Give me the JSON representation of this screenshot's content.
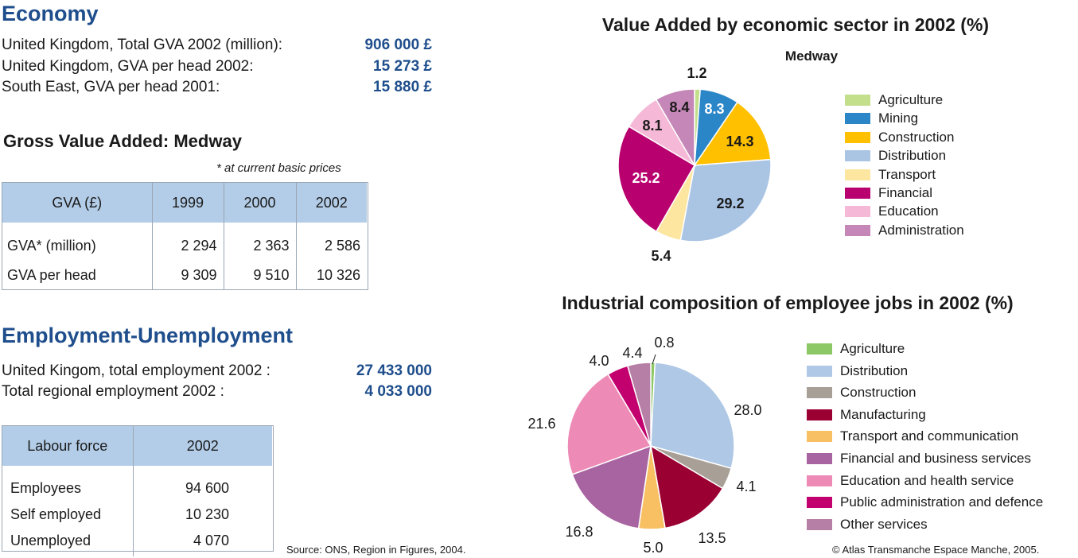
{
  "economy": {
    "title": "Economy",
    "rows": [
      {
        "label": "United Kingdom, Total GVA 2002 (million):",
        "value": "906 000 £"
      },
      {
        "label": "United Kingdom, GVA per head 2002:",
        "value": "15 273 £"
      },
      {
        "label": "South East, GVA per head 2001:",
        "value": "15 880 £"
      }
    ]
  },
  "gva": {
    "title": "Gross Value Added: Medway",
    "note": "* at current basic prices",
    "headers": [
      "GVA (£)",
      "1999",
      "2000",
      "2002"
    ],
    "rows": [
      [
        "GVA* (million)",
        "2 294",
        "2 363",
        "2 586"
      ],
      [
        "GVA per head",
        "9 309",
        "9 510",
        "10 326"
      ]
    ]
  },
  "employment": {
    "title": "Employment-Unemployment",
    "rows": [
      {
        "label": "United Kingom, total employment 2002 :",
        "value": "27 433 000"
      },
      {
        "label": "Total regional employment 2002 :",
        "value": "4 033 000"
      }
    ]
  },
  "labour": {
    "headers": [
      "Labour force",
      "2002"
    ],
    "rows": [
      [
        "Employees",
        "94 600"
      ],
      [
        "Self employed",
        "10 230"
      ],
      [
        "Unemployed",
        "4 070"
      ]
    ]
  },
  "source": "Source: ONS, Region in Figures, 2004.",
  "copyright": "© Atlas Transmanche Espace Manche, 2005.",
  "chart_data": [
    {
      "type": "pie",
      "title": "Value Added by economic sector in 2002 (%)",
      "subtitle": "Medway",
      "categories": [
        "Agriculture",
        "Mining",
        "Construction",
        "Distribution",
        "Transport",
        "Financial",
        "Education",
        "Administration"
      ],
      "values": [
        1.2,
        8.3,
        14.3,
        29.2,
        5.4,
        25.2,
        8.1,
        8.4
      ],
      "labels": [
        "1.2",
        "8.3",
        "14.3",
        "29.2",
        "5.4",
        "25.2",
        "8.1",
        "8.4"
      ],
      "colors": [
        "#c3df8b",
        "#2b86c8",
        "#ffc000",
        "#aac4e4",
        "#fde6a0",
        "#b8006e",
        "#f5b8d6",
        "#c586b8"
      ],
      "legend": "right"
    },
    {
      "type": "pie",
      "title": "Industrial composition of employee jobs in 2002 (%)",
      "categories": [
        "Agriculture",
        "Distribution",
        "Construction",
        "Manufacturing",
        "Transport and communication",
        "Financial and business services",
        "Education and health service",
        "Public administration and defence",
        "Other services"
      ],
      "values": [
        0.8,
        28.0,
        4.1,
        13.5,
        5.0,
        16.8,
        21.6,
        4.0,
        4.4
      ],
      "labels": [
        "0.8",
        "28.0",
        "4.1",
        "13.5",
        "5.0",
        "16.8",
        "21.6",
        "4.0",
        "4.4"
      ],
      "colors": [
        "#8cc866",
        "#aec8e6",
        "#a8a096",
        "#9b0033",
        "#f8c063",
        "#a864a0",
        "#ee8ab6",
        "#c2006e",
        "#b67fa6"
      ],
      "legend": "right"
    }
  ]
}
